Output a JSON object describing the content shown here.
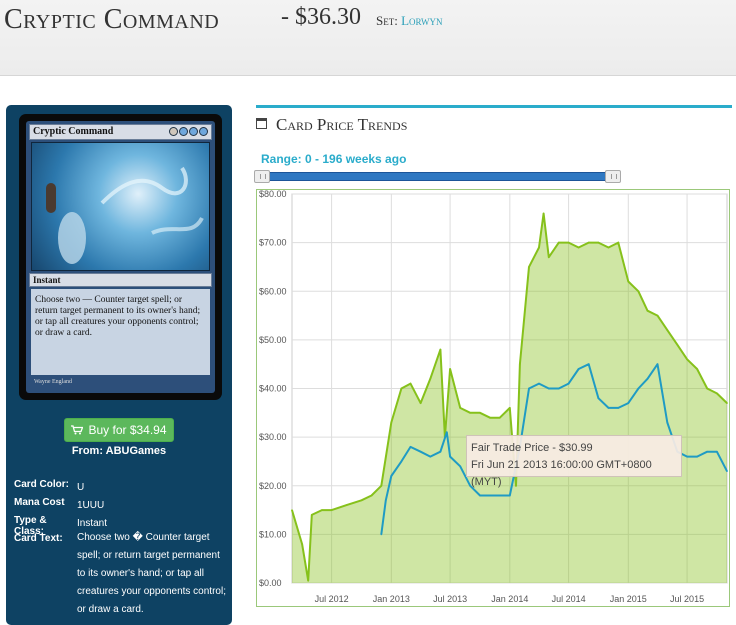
{
  "header": {
    "card_name": "Cryptic Command",
    "price": "- $36.30",
    "set_label": "Set:",
    "set_name": "Lorwyn"
  },
  "card_image": {
    "name": "Cryptic Command",
    "type": "Instant",
    "rules_text": "Choose two — Counter target spell; or return target permanent to its owner's hand; or tap all creatures your opponents control; or draw a card.",
    "artist": "Wayne England"
  },
  "purchase": {
    "buy_label": "Buy for $34.94",
    "from_label": "From: ABUGames"
  },
  "details": [
    {
      "label": "Card Color:",
      "value": "U"
    },
    {
      "label": "Mana Cost",
      "value": "1UUU"
    },
    {
      "label": "Type & Class:",
      "value": "Instant"
    },
    {
      "label": "Card Text:",
      "value": "Choose two � Counter target spell; or return target permanent to its owner's hand; or tap all creatures your opponents control; or draw a card."
    }
  ],
  "trends": {
    "title": "Card Price Trends",
    "range_label": "Range: 0 - 196 weeks ago"
  },
  "tooltip": {
    "line1": "Fair Trade Price - $30.99",
    "line2": "Fri Jun 21 2013 16:00:00 GMT+0800 (MYT)"
  },
  "colors": {
    "accent": "#2aaccb",
    "green_series": "#86c11b",
    "blue_series": "#1f9bc4",
    "panel": "#0e4263",
    "buy_button": "#5cb85c"
  },
  "icons": [
    "calendar-icon",
    "cart-icon",
    "slider-handle-icon"
  ],
  "chart_data": {
    "type": "area",
    "x_ticks": [
      "Jul 2012",
      "Jan 2013",
      "Jul 2013",
      "Jan 2014",
      "Jul 2014",
      "Jan 2015",
      "Jul 2015"
    ],
    "y_ticks": [
      "$0.00",
      "$10.00",
      "$20.00",
      "$30.00",
      "$40.00",
      "$50.00",
      "$60.00",
      "$70.00",
      "$80.00"
    ],
    "ylim": [
      0,
      80
    ],
    "xlim": [
      "2012-03-01",
      "2015-11-01"
    ],
    "grid": true,
    "series": [
      {
        "color": "#86c11b",
        "fill": true,
        "points": [
          [
            "2012-03-01",
            15
          ],
          [
            "2012-04-01",
            8
          ],
          [
            "2012-04-20",
            0.5
          ],
          [
            "2012-05-01",
            14
          ],
          [
            "2012-06-01",
            15
          ],
          [
            "2012-07-01",
            15
          ],
          [
            "2012-08-15",
            16
          ],
          [
            "2012-10-01",
            17
          ],
          [
            "2012-11-01",
            18
          ],
          [
            "2012-12-01",
            20
          ],
          [
            "2013-01-01",
            33
          ],
          [
            "2013-02-01",
            40
          ],
          [
            "2013-03-01",
            41
          ],
          [
            "2013-04-01",
            37
          ],
          [
            "2013-05-01",
            42
          ],
          [
            "2013-06-01",
            48
          ],
          [
            "2013-06-15",
            30
          ],
          [
            "2013-07-01",
            44
          ],
          [
            "2013-08-01",
            36
          ],
          [
            "2013-09-01",
            35
          ],
          [
            "2013-10-01",
            35
          ],
          [
            "2013-11-01",
            34
          ],
          [
            "2013-12-01",
            34
          ],
          [
            "2014-01-01",
            36
          ],
          [
            "2014-01-20",
            20
          ],
          [
            "2014-02-01",
            45
          ],
          [
            "2014-03-01",
            65
          ],
          [
            "2014-04-01",
            69
          ],
          [
            "2014-04-15",
            76
          ],
          [
            "2014-05-01",
            67
          ],
          [
            "2014-06-01",
            70
          ],
          [
            "2014-07-01",
            70
          ],
          [
            "2014-08-01",
            69
          ],
          [
            "2014-09-01",
            70
          ],
          [
            "2014-10-01",
            70
          ],
          [
            "2014-11-01",
            69
          ],
          [
            "2014-12-01",
            70
          ],
          [
            "2015-01-01",
            62
          ],
          [
            "2015-02-01",
            60
          ],
          [
            "2015-03-01",
            56
          ],
          [
            "2015-04-01",
            55
          ],
          [
            "2015-05-01",
            52
          ],
          [
            "2015-06-01",
            49
          ],
          [
            "2015-07-01",
            46
          ],
          [
            "2015-08-01",
            44
          ],
          [
            "2015-09-01",
            40
          ],
          [
            "2015-10-01",
            39
          ],
          [
            "2015-11-01",
            37
          ]
        ]
      },
      {
        "color": "#1f9bc4",
        "fill": false,
        "points": [
          [
            "2012-12-01",
            10
          ],
          [
            "2012-12-15",
            17
          ],
          [
            "2013-01-01",
            22
          ],
          [
            "2013-02-01",
            25
          ],
          [
            "2013-03-01",
            28
          ],
          [
            "2013-04-01",
            27
          ],
          [
            "2013-05-01",
            26
          ],
          [
            "2013-06-01",
            27
          ],
          [
            "2013-06-21",
            30.99
          ],
          [
            "2013-07-01",
            26
          ],
          [
            "2013-08-01",
            24
          ],
          [
            "2013-09-01",
            20
          ],
          [
            "2013-10-01",
            18
          ],
          [
            "2013-11-01",
            18
          ],
          [
            "2013-12-01",
            18
          ],
          [
            "2014-01-01",
            18
          ],
          [
            "2014-02-01",
            28
          ],
          [
            "2014-03-01",
            40
          ],
          [
            "2014-04-01",
            41
          ],
          [
            "2014-05-01",
            40
          ],
          [
            "2014-06-01",
            40
          ],
          [
            "2014-07-01",
            41
          ],
          [
            "2014-08-01",
            44
          ],
          [
            "2014-09-01",
            45
          ],
          [
            "2014-10-01",
            38
          ],
          [
            "2014-11-01",
            36
          ],
          [
            "2014-12-01",
            36
          ],
          [
            "2015-01-01",
            37
          ],
          [
            "2015-02-01",
            40
          ],
          [
            "2015-03-01",
            42
          ],
          [
            "2015-04-01",
            45
          ],
          [
            "2015-05-01",
            33
          ],
          [
            "2015-06-01",
            27
          ],
          [
            "2015-07-01",
            26
          ],
          [
            "2015-08-01",
            26
          ],
          [
            "2015-09-01",
            27
          ],
          [
            "2015-10-01",
            27
          ],
          [
            "2015-11-01",
            23
          ]
        ]
      }
    ]
  }
}
